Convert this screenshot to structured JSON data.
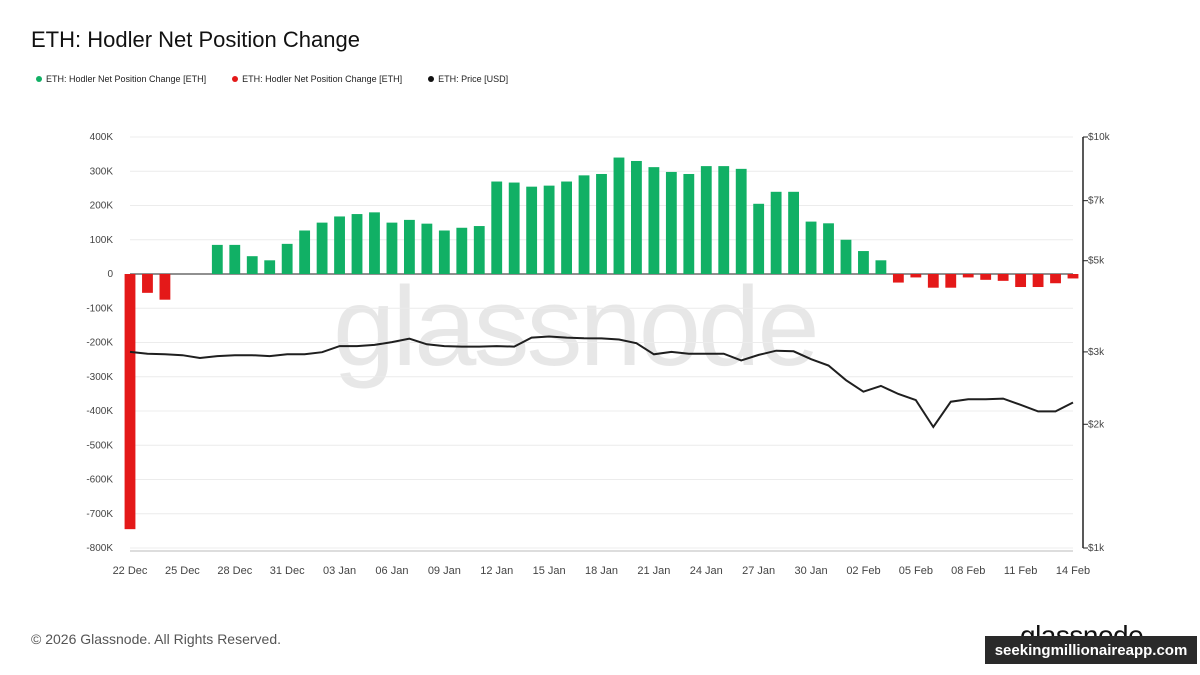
{
  "page": {
    "title": "ETH: Hodler Net Position Change",
    "footer": "© 2026 Glassnode. All Rights Reserved.",
    "brand": "glassnode",
    "site_watermark": "seekingmillionaireapp.com"
  },
  "colors": {
    "positive": "#11b065",
    "negative": "#e41919",
    "price": "#1f1f1f"
  },
  "chart_data": {
    "type": "bar",
    "title": "ETH: Hodler Net Position Change",
    "legend": [
      {
        "label": "ETH: Hodler Net Position Change [ETH]",
        "color": "#11b065"
      },
      {
        "label": "ETH: Hodler Net Position Change [ETH]",
        "color": "#e41919"
      },
      {
        "label": "ETH: Price [USD]",
        "color": "#111111"
      }
    ],
    "x_ticks": [
      "22 Dec",
      "25 Dec",
      "28 Dec",
      "31 Dec",
      "03 Jan",
      "06 Jan",
      "09 Jan",
      "12 Jan",
      "15 Jan",
      "18 Jan",
      "21 Jan",
      "24 Jan",
      "27 Jan",
      "30 Jan",
      "02 Feb",
      "05 Feb",
      "08 Feb",
      "11 Feb",
      "14 Feb"
    ],
    "y_left": {
      "ticks": [
        "400K",
        "300K",
        "200K",
        "100K",
        "0",
        "-100K",
        "-200K",
        "-300K",
        "-400K",
        "-500K",
        "-600K",
        "-700K",
        "-800K"
      ],
      "ylim": [
        -800000,
        400000
      ]
    },
    "y_right": {
      "ticks": [
        "$10k",
        "$7k",
        "$5k",
        "$3k",
        "$2k",
        "$1k"
      ],
      "ylim": [
        1000,
        10000
      ],
      "scale": "log"
    },
    "day_count": 54,
    "series": [
      {
        "name": "ETH: Hodler Net Position Change [ETH]",
        "kind": "bar",
        "values": [
          -745000,
          -55000,
          -75000,
          0,
          0,
          85000,
          85000,
          52000,
          40000,
          88000,
          127000,
          150000,
          168000,
          175000,
          180000,
          150000,
          158000,
          147000,
          127000,
          135000,
          140000,
          270000,
          267000,
          255000,
          258000,
          270000,
          288000,
          292000,
          340000,
          330000,
          312000,
          298000,
          292000,
          315000,
          315000,
          307000,
          205000,
          240000,
          240000,
          153000,
          148000,
          100000,
          67000,
          40000,
          -25000,
          -10000,
          -40000,
          -40000,
          -10000,
          -17000,
          -20000,
          -38000,
          -38000,
          -27000,
          -13000
        ]
      },
      {
        "name": "ETH: Price [USD]",
        "kind": "line",
        "values": [
          3000,
          2970,
          2960,
          2945,
          2900,
          2930,
          2945,
          2945,
          2930,
          2960,
          2960,
          2995,
          3100,
          3100,
          3120,
          3170,
          3230,
          3130,
          3100,
          3090,
          3090,
          3100,
          3090,
          3250,
          3270,
          3250,
          3240,
          3235,
          3215,
          3150,
          2960,
          3000,
          2970,
          2970,
          2970,
          2860,
          2950,
          3020,
          3010,
          2880,
          2780,
          2560,
          2400,
          2480,
          2370,
          2290,
          1970,
          2270,
          2300,
          2300,
          2310,
          2230,
          2150,
          2150,
          2260
        ]
      }
    ]
  }
}
